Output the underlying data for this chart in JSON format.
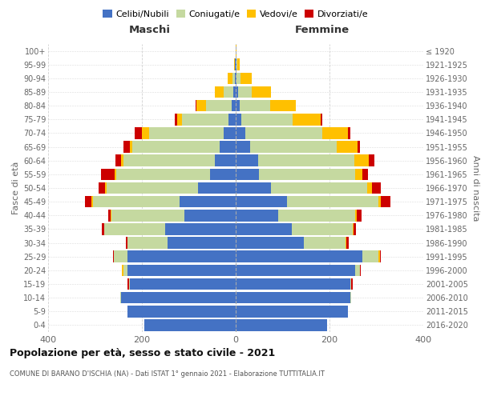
{
  "age_groups": [
    "0-4",
    "5-9",
    "10-14",
    "15-19",
    "20-24",
    "25-29",
    "30-34",
    "35-39",
    "40-44",
    "45-49",
    "50-54",
    "55-59",
    "60-64",
    "65-69",
    "70-74",
    "75-79",
    "80-84",
    "85-89",
    "90-94",
    "95-99",
    "100+"
  ],
  "birth_years": [
    "2016-2020",
    "2011-2015",
    "2006-2010",
    "2001-2005",
    "1996-2000",
    "1991-1995",
    "1986-1990",
    "1981-1985",
    "1976-1980",
    "1971-1975",
    "1966-1970",
    "1961-1965",
    "1956-1960",
    "1951-1955",
    "1946-1950",
    "1941-1945",
    "1936-1940",
    "1931-1935",
    "1926-1930",
    "1921-1925",
    "≤ 1920"
  ],
  "colors": {
    "celibi": "#4472c4",
    "coniugati": "#c5d9a0",
    "vedovi": "#ffc000",
    "divorziati": "#cc0000"
  },
  "maschi": {
    "celibi": [
      195,
      230,
      245,
      225,
      230,
      230,
      145,
      150,
      110,
      120,
      80,
      55,
      45,
      35,
      25,
      15,
      8,
      5,
      2,
      1,
      0
    ],
    "coniugati": [
      0,
      0,
      1,
      3,
      10,
      30,
      85,
      130,
      155,
      185,
      195,
      200,
      195,
      185,
      160,
      100,
      55,
      20,
      5,
      1,
      0
    ],
    "vedovi": [
      0,
      0,
      0,
      0,
      2,
      0,
      0,
      1,
      1,
      2,
      3,
      3,
      5,
      5,
      15,
      10,
      20,
      20,
      10,
      2,
      0
    ],
    "divorziati": [
      0,
      0,
      0,
      2,
      0,
      2,
      5,
      5,
      5,
      15,
      15,
      30,
      12,
      15,
      15,
      5,
      3,
      0,
      0,
      0,
      0
    ]
  },
  "femmine": {
    "celibi": [
      195,
      240,
      245,
      245,
      255,
      270,
      145,
      120,
      90,
      110,
      75,
      50,
      48,
      30,
      20,
      12,
      8,
      5,
      2,
      1,
      0
    ],
    "coniugati": [
      0,
      0,
      1,
      2,
      10,
      35,
      90,
      130,
      165,
      195,
      205,
      205,
      205,
      185,
      165,
      110,
      65,
      30,
      8,
      2,
      0
    ],
    "vedovi": [
      0,
      0,
      0,
      0,
      0,
      2,
      1,
      2,
      3,
      5,
      10,
      15,
      30,
      45,
      55,
      60,
      55,
      40,
      25,
      5,
      1
    ],
    "divorziati": [
      0,
      0,
      0,
      2,
      2,
      2,
      5,
      5,
      10,
      20,
      20,
      12,
      12,
      5,
      5,
      2,
      0,
      0,
      0,
      0,
      0
    ]
  },
  "title": "Popolazione per età, sesso e stato civile - 2021",
  "subtitle": "COMUNE DI BARANO D'ISCHIA (NA) - Dati ISTAT 1° gennaio 2021 - Elaborazione TUTTITALIA.IT",
  "xlabel_left": "Maschi",
  "xlabel_right": "Femmine",
  "ylabel_left": "Fasce di età",
  "ylabel_right": "Anni di nascita",
  "xlim": 400,
  "legend_labels": [
    "Celibi/Nubili",
    "Coniugati/e",
    "Vedovi/e",
    "Divorziati/e"
  ],
  "background_color": "#ffffff",
  "grid_color": "#cccccc"
}
